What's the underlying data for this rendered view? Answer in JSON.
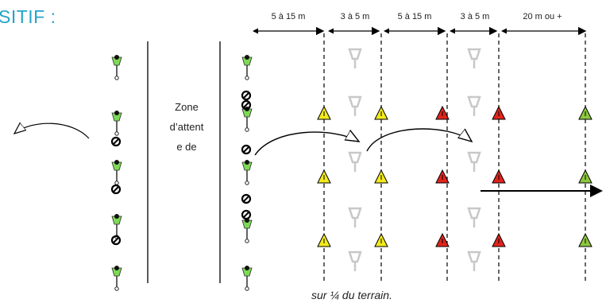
{
  "title": "SITIF :",
  "zone_label": [
    "Zone",
    "d’attent",
    "e de"
  ],
  "caption": "sur  ¼ du terrain.",
  "distances": [
    "5 à 15 m",
    "3 à 5 m",
    "5 à 15 m",
    "3 à 5 m",
    "20 m ou +"
  ],
  "colors": {
    "title": "#23a4c9",
    "cone_yellow": "#f2ea1c",
    "cone_red": "#e0241c",
    "cone_green": "#8dc63f",
    "player_ghost": "#c8c8c8",
    "player_green": "#7ed957"
  }
}
